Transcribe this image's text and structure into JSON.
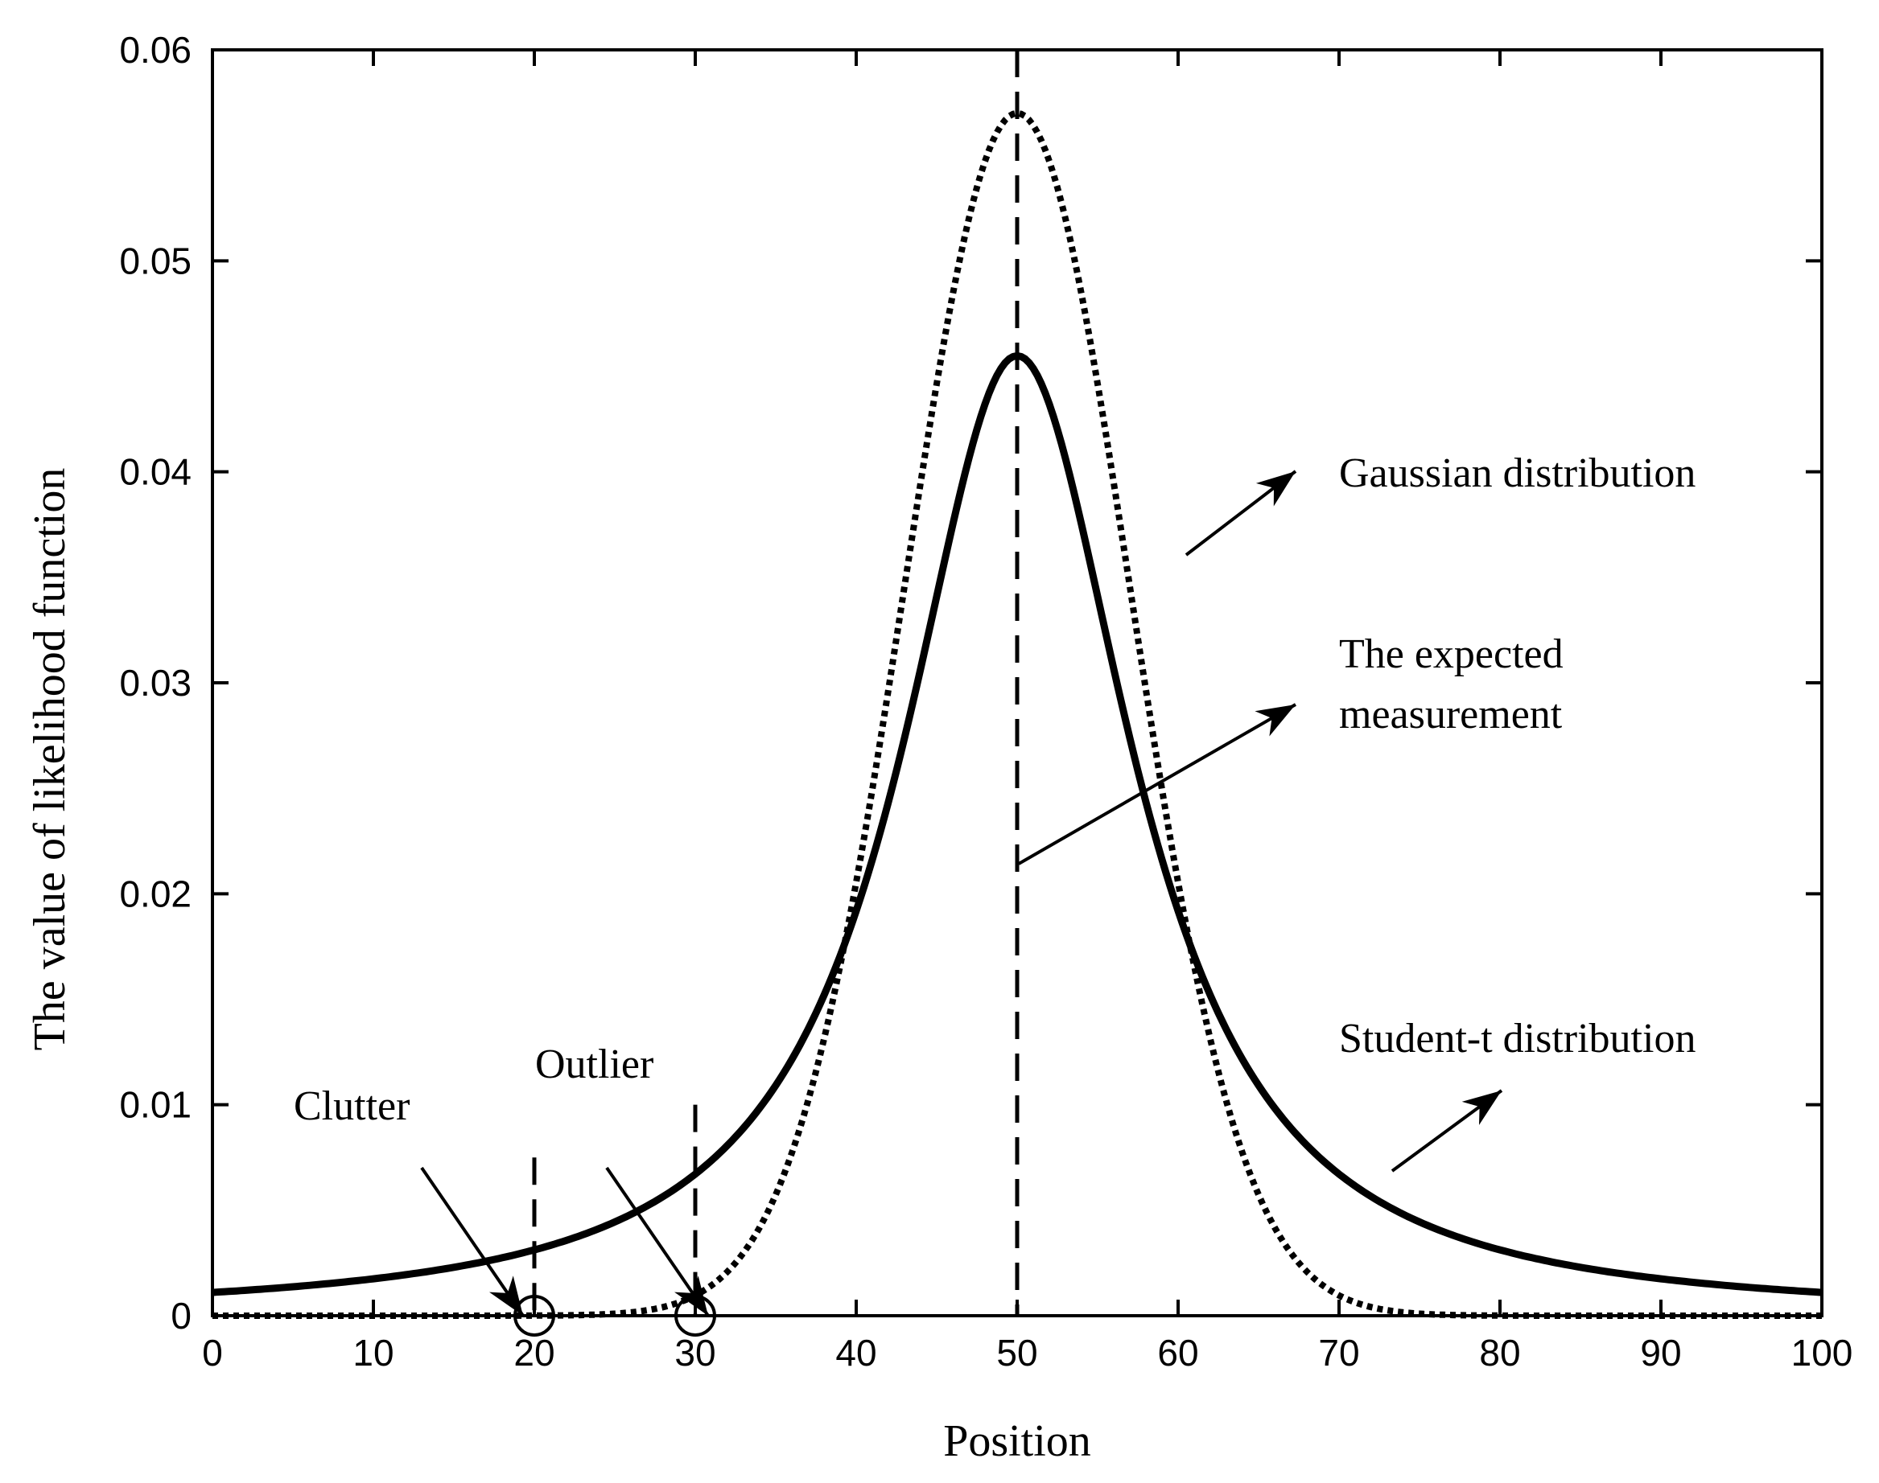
{
  "chart_data": {
    "type": "line",
    "title": "",
    "xlabel": "Position",
    "ylabel": "The value of likelihood function",
    "xlim": [
      0,
      100
    ],
    "ylim": [
      0,
      0.06
    ],
    "x_ticks": [
      "0",
      "10",
      "20",
      "30",
      "40",
      "50",
      "60",
      "70",
      "80",
      "90",
      "100"
    ],
    "y_ticks": [
      "0",
      "0.01",
      "0.02",
      "0.03",
      "0.04",
      "0.05",
      "0.06"
    ],
    "x": [
      0,
      5,
      10,
      15,
      20,
      25,
      30,
      35,
      40,
      45,
      50,
      55,
      60,
      65,
      70,
      75,
      80,
      85,
      90,
      95,
      100
    ],
    "series": [
      {
        "name": "Gaussian distribution",
        "style": "dotted",
        "values": [
          0.0,
          0.0,
          0.0,
          0.0,
          0.0,
          0.0002,
          0.0012,
          0.0052,
          0.0192,
          0.0423,
          0.057,
          0.0423,
          0.0192,
          0.0052,
          0.0012,
          0.0002,
          0.0,
          0.0,
          0.0,
          0.0,
          0.0
        ]
      },
      {
        "name": "Student-t distribution",
        "style": "solid",
        "values": [
          0.0008,
          0.001,
          0.0013,
          0.0017,
          0.0024,
          0.0034,
          0.0052,
          0.0086,
          0.0157,
          0.0307,
          0.0455,
          0.0307,
          0.0157,
          0.0086,
          0.0052,
          0.0034,
          0.0024,
          0.0017,
          0.0013,
          0.001,
          0.0008
        ]
      }
    ],
    "vertical_markers": [
      {
        "name": "The expected measurement",
        "x": 50,
        "y_top": 0.06
      },
      {
        "name": "Clutter",
        "x": 20,
        "y_top": 0.0075
      },
      {
        "name": "Outlier",
        "x": 30,
        "y_top": 0.01
      }
    ],
    "annotations": {
      "gaussian": "Gaussian distribution",
      "expected_line1": "The expected",
      "expected_line2": "measurement",
      "student": "Student-t distribution",
      "clutter": "Clutter",
      "outlier": "Outlier"
    },
    "legend": "none",
    "grid": false
  }
}
